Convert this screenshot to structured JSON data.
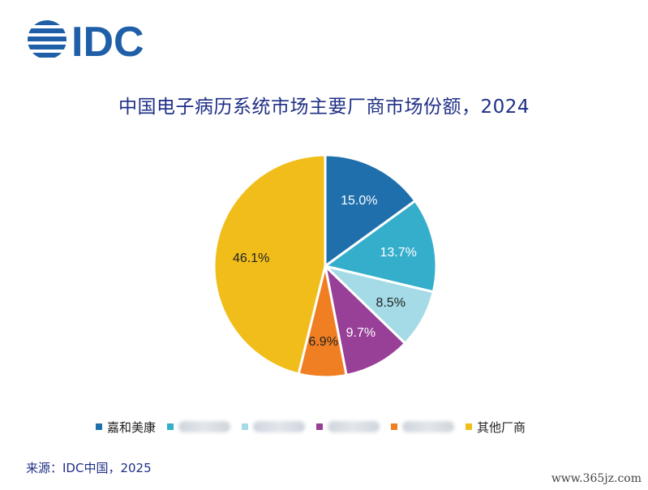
{
  "brand": {
    "logo_text": "IDC",
    "logo_color": "#1f5fa8"
  },
  "chart_data": {
    "type": "pie",
    "title": "中国电子病历系统市场主要厂商市场份额，2024",
    "categories": [
      "嘉和美康",
      "",
      "",
      "",
      "",
      "其他厂商"
    ],
    "values": [
      15.0,
      13.7,
      8.5,
      9.7,
      6.9,
      46.1
    ],
    "labels": [
      "15.0%",
      "13.7%",
      "8.5%",
      "9.7%",
      "6.9%",
      "46.1%"
    ],
    "colors": [
      "#1f6fad",
      "#35aecb",
      "#a4dbe6",
      "#983f97",
      "#f07e22",
      "#f1bd1a"
    ],
    "start": "12 o'clock",
    "direction": "clockwise",
    "legend_position": "bottom"
  },
  "footer": {
    "source": "来源：IDC中国，2025",
    "watermark": "www.365jz.com"
  }
}
